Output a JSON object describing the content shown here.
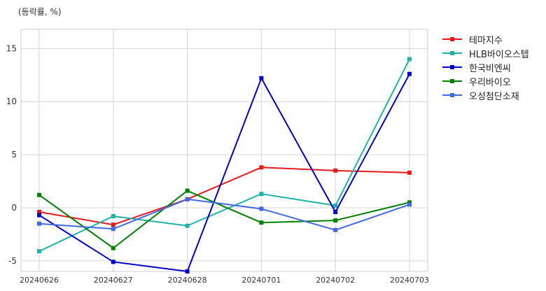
{
  "chart_data": {
    "type": "line",
    "unit_label": "(등락률, %)",
    "categories": [
      "20240626",
      "20240627",
      "20240628",
      "20240701",
      "20240702",
      "20240703"
    ],
    "ylim": [
      -6.0,
      16.8
    ],
    "yticks": [
      -5,
      0,
      5,
      10,
      15
    ],
    "grid": true,
    "legend_position": "outside-top-right",
    "series": [
      {
        "name": "테마지수",
        "color": "#e8191b",
        "values": [
          -0.4,
          -1.6,
          0.8,
          3.8,
          3.5,
          3.3
        ]
      },
      {
        "name": "HLB바이오스텝",
        "color": "#20b2aa",
        "values": [
          -4.1,
          -0.8,
          -1.7,
          1.3,
          0.2,
          14.0
        ]
      },
      {
        "name": "한국비엔씨",
        "color": "#0000cd",
        "values": [
          -0.7,
          -5.1,
          -6.0,
          12.2,
          -0.4,
          12.6
        ]
      },
      {
        "name": "우리바이오",
        "color": "#008000",
        "values": [
          1.2,
          -3.8,
          1.6,
          -1.4,
          -1.2,
          0.5
        ]
      },
      {
        "name": "오성첨단소재",
        "color": "#4169e1",
        "values": [
          -1.5,
          -2.0,
          0.8,
          -0.1,
          -2.1,
          0.3
        ]
      }
    ]
  }
}
